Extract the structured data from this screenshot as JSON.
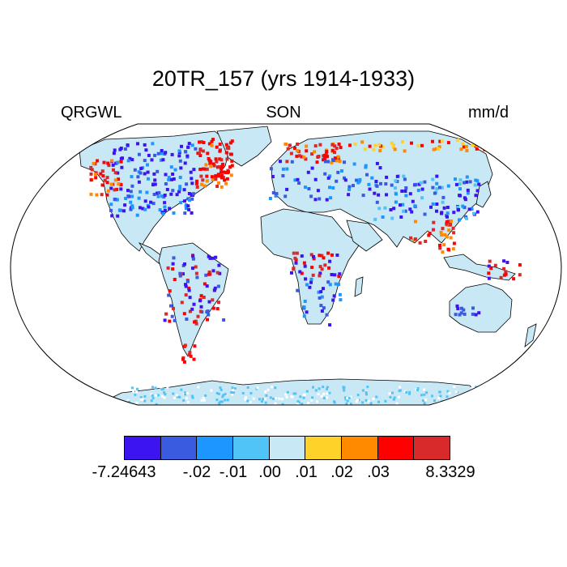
{
  "title": "20TR_157 (yrs 1914-1933)",
  "left_label": "QRGWL",
  "center_label": "SON",
  "right_label": "mm/d",
  "legend": {
    "colors": [
      "#3c14f0",
      "#3a5ae0",
      "#1e96ff",
      "#50c4f6",
      "#c8e8f6",
      "#ffd22a",
      "#ff8a00",
      "#ff0000",
      "#d82a2a"
    ],
    "labels": [
      "-7.24643",
      "-.02",
      "-.01",
      ".00",
      ".01",
      ".02",
      ".03",
      "8.3329"
    ]
  },
  "colors": {
    "land": "#c8e8f6",
    "ocean": "#ffffff",
    "coast": "#000000"
  }
}
